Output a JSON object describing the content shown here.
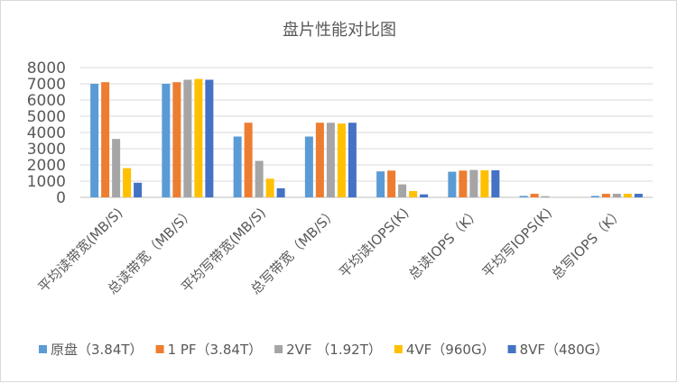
{
  "chart_data": {
    "type": "bar",
    "title": "盘片性能对比图",
    "xlabel": "",
    "ylabel": "",
    "ylim": [
      0,
      8000
    ],
    "yticks": [
      "0",
      "1000",
      "2000",
      "3000",
      "4000",
      "5000",
      "6000",
      "7000",
      "8000"
    ],
    "grid": true,
    "legend_position": "bottom",
    "categories": [
      "平均读带宽(MB/S)",
      "总读带宽（MB/S）",
      "平均写带宽(MB/S)",
      "总写带宽（MB/S）",
      "平均读IOPS(K)",
      "总读IOPS（K）",
      "平均写IOPS(K)",
      "总写IOPS（K）"
    ],
    "series": [
      {
        "name": "原盘（3.84T）",
        "color": "#5B9BD5",
        "values": [
          7000,
          7000,
          3750,
          3750,
          1600,
          1580,
          90,
          90
        ]
      },
      {
        "name": "1 PF（3.84T）",
        "color": "#ED7D31",
        "values": [
          7100,
          7100,
          4600,
          4600,
          1650,
          1650,
          220,
          220
        ]
      },
      {
        "name": "2VF （1.92T）",
        "color": "#A5A5A5",
        "values": [
          3600,
          7250,
          2250,
          4600,
          800,
          1690,
          75,
          220
        ]
      },
      {
        "name": "4VF（960G）",
        "color": "#FFC000",
        "values": [
          1800,
          7300,
          1150,
          4550,
          390,
          1670,
          0,
          220
        ]
      },
      {
        "name": "8VF（480G）",
        "color": "#4472C4",
        "values": [
          900,
          7250,
          560,
          4600,
          185,
          1670,
          0,
          220
        ]
      }
    ]
  }
}
